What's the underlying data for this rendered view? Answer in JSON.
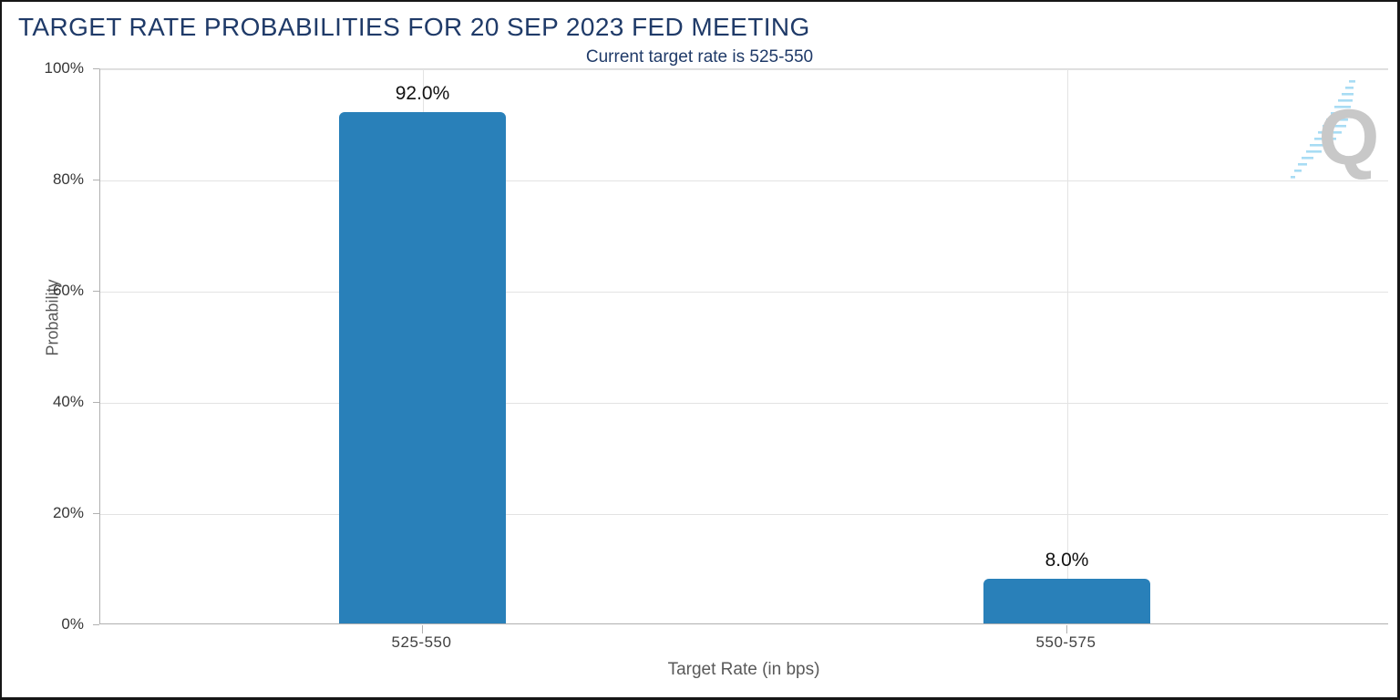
{
  "title": "TARGET RATE PROBABILITIES FOR 20 SEP 2023 FED MEETING",
  "subtitle": "Current target rate is 525-550",
  "watermark": {
    "letter": "Q"
  },
  "colors": {
    "bar": "#2980b9",
    "title_text": "#1f3a68",
    "axis_title_text": "#595959",
    "gridline": "#e3e3e3",
    "axis_line": "#b0b0b0",
    "watermark_q": "#c8c8c8",
    "watermark_dash": "#a8dcf4"
  },
  "chart_data": {
    "type": "bar",
    "title": "TARGET RATE PROBABILITIES FOR 20 SEP 2023 FED MEETING",
    "subtitle": "Current target rate is 525-550",
    "categories": [
      "525-550",
      "550-575"
    ],
    "values": [
      92.0,
      8.0
    ],
    "value_labels": [
      "92.0%",
      "8.0%"
    ],
    "xlabel": "Target Rate (in bps)",
    "ylabel": "Probability",
    "ylim": [
      0,
      100
    ],
    "yticks": [
      0,
      20,
      40,
      60,
      80,
      100
    ],
    "ytick_labels": [
      "0%",
      "20%",
      "40%",
      "60%",
      "80%",
      "100%"
    ],
    "grid": true,
    "legend": false,
    "bar_color": "#2980b9"
  }
}
